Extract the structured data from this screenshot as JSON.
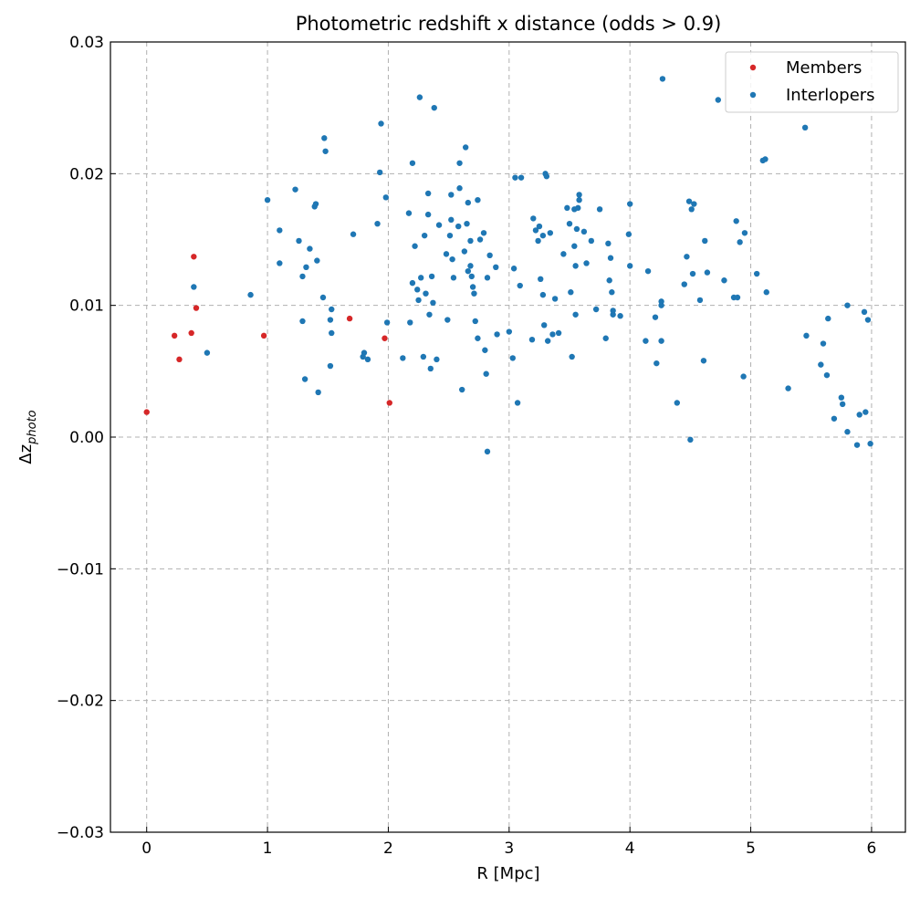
{
  "chart_data": {
    "type": "scatter",
    "title": "Photometric redshift x distance (odds > 0.9)",
    "xlabel": "R [Mpc]",
    "ylabel_main": "Δz",
    "ylabel_sub": "photo",
    "xlim": [
      -0.3,
      6.28
    ],
    "ylim": [
      -0.03,
      0.03
    ],
    "xticks": [
      0,
      1,
      2,
      3,
      4,
      5,
      6
    ],
    "xtick_labels": [
      "0",
      "1",
      "2",
      "3",
      "4",
      "5",
      "6"
    ],
    "yticks": [
      -0.03,
      -0.02,
      -0.01,
      0.0,
      0.01,
      0.02,
      0.03
    ],
    "ytick_labels": [
      "−0.03",
      "−0.02",
      "−0.01",
      "0.00",
      "0.01",
      "0.02",
      "0.03"
    ],
    "grid": true,
    "legend_position": "top-right",
    "series": [
      {
        "name": "Members",
        "color": "#d62728",
        "points": [
          [
            0.0,
            0.0019
          ],
          [
            0.23,
            0.0077
          ],
          [
            0.27,
            0.0059
          ],
          [
            0.37,
            0.0079
          ],
          [
            0.39,
            0.0137
          ],
          [
            0.41,
            0.0098
          ],
          [
            0.97,
            0.0077
          ],
          [
            1.68,
            0.009
          ],
          [
            1.97,
            0.0075
          ],
          [
            2.01,
            0.0026
          ]
        ]
      },
      {
        "name": "Interlopers",
        "color": "#1f77b4",
        "points": [
          [
            0.39,
            0.0114
          ],
          [
            0.5,
            0.0064
          ],
          [
            0.86,
            0.0108
          ],
          [
            1.0,
            0.018
          ],
          [
            1.1,
            0.0157
          ],
          [
            1.1,
            0.0132
          ],
          [
            1.23,
            0.0188
          ],
          [
            1.26,
            0.0149
          ],
          [
            1.29,
            0.0122
          ],
          [
            1.29,
            0.0088
          ],
          [
            1.31,
            0.0044
          ],
          [
            1.32,
            0.0129
          ],
          [
            1.35,
            0.0143
          ],
          [
            1.39,
            0.0175
          ],
          [
            1.4,
            0.0177
          ],
          [
            1.41,
            0.0134
          ],
          [
            1.42,
            0.0034
          ],
          [
            1.46,
            0.0106
          ],
          [
            1.47,
            0.0227
          ],
          [
            1.48,
            0.0217
          ],
          [
            1.52,
            0.0054
          ],
          [
            1.52,
            0.0089
          ],
          [
            1.53,
            0.0079
          ],
          [
            1.53,
            0.0097
          ],
          [
            1.71,
            0.0154
          ],
          [
            1.79,
            0.0061
          ],
          [
            1.8,
            0.0064
          ],
          [
            1.83,
            0.0059
          ],
          [
            1.91,
            0.0162
          ],
          [
            1.93,
            0.0201
          ],
          [
            1.94,
            0.0238
          ],
          [
            1.98,
            0.0182
          ],
          [
            1.99,
            0.0087
          ],
          [
            2.12,
            0.006
          ],
          [
            2.17,
            0.017
          ],
          [
            2.18,
            0.0087
          ],
          [
            2.2,
            0.0208
          ],
          [
            2.2,
            0.0117
          ],
          [
            2.22,
            0.0145
          ],
          [
            2.24,
            0.0112
          ],
          [
            2.25,
            0.0104
          ],
          [
            2.26,
            0.0258
          ],
          [
            2.27,
            0.0121
          ],
          [
            2.29,
            0.0061
          ],
          [
            2.3,
            0.0153
          ],
          [
            2.31,
            0.0109
          ],
          [
            2.33,
            0.0185
          ],
          [
            2.33,
            0.0169
          ],
          [
            2.34,
            0.0093
          ],
          [
            2.35,
            0.0052
          ],
          [
            2.36,
            0.0122
          ],
          [
            2.37,
            0.0102
          ],
          [
            2.38,
            0.025
          ],
          [
            2.4,
            0.0059
          ],
          [
            2.42,
            0.0161
          ],
          [
            2.48,
            0.0139
          ],
          [
            2.49,
            0.0089
          ],
          [
            2.51,
            0.0153
          ],
          [
            2.52,
            0.0184
          ],
          [
            2.52,
            0.0165
          ],
          [
            2.53,
            0.0135
          ],
          [
            2.54,
            0.0121
          ],
          [
            2.58,
            0.016
          ],
          [
            2.59,
            0.0189
          ],
          [
            2.59,
            0.0208
          ],
          [
            2.61,
            0.0036
          ],
          [
            2.63,
            0.0141
          ],
          [
            2.64,
            0.022
          ],
          [
            2.65,
            0.0162
          ],
          [
            2.66,
            0.0178
          ],
          [
            2.66,
            0.0126
          ],
          [
            2.68,
            0.0149
          ],
          [
            2.68,
            0.013
          ],
          [
            2.69,
            0.0122
          ],
          [
            2.7,
            0.0114
          ],
          [
            2.71,
            0.0109
          ],
          [
            2.72,
            0.0088
          ],
          [
            2.74,
            0.0075
          ],
          [
            2.74,
            0.018
          ],
          [
            2.76,
            0.015
          ],
          [
            2.79,
            0.0155
          ],
          [
            2.8,
            0.0066
          ],
          [
            2.81,
            0.0048
          ],
          [
            2.82,
            0.0121
          ],
          [
            2.82,
            -0.0011
          ],
          [
            2.84,
            0.0138
          ],
          [
            2.89,
            0.0129
          ],
          [
            2.9,
            0.0078
          ],
          [
            3.0,
            0.008
          ],
          [
            3.03,
            0.006
          ],
          [
            3.04,
            0.0128
          ],
          [
            3.05,
            0.0197
          ],
          [
            3.07,
            0.0026
          ],
          [
            3.09,
            0.0115
          ],
          [
            3.1,
            0.0197
          ],
          [
            3.19,
            0.0074
          ],
          [
            3.2,
            0.0166
          ],
          [
            3.22,
            0.0157
          ],
          [
            3.24,
            0.0149
          ],
          [
            3.25,
            0.016
          ],
          [
            3.26,
            0.012
          ],
          [
            3.28,
            0.0153
          ],
          [
            3.28,
            0.0108
          ],
          [
            3.29,
            0.0085
          ],
          [
            3.3,
            0.02
          ],
          [
            3.31,
            0.0198
          ],
          [
            3.32,
            0.0073
          ],
          [
            3.34,
            0.0155
          ],
          [
            3.36,
            0.0078
          ],
          [
            3.38,
            0.0105
          ],
          [
            3.41,
            0.0079
          ],
          [
            3.45,
            0.0139
          ],
          [
            3.48,
            0.0174
          ],
          [
            3.5,
            0.0162
          ],
          [
            3.51,
            0.011
          ],
          [
            3.52,
            0.0061
          ],
          [
            3.54,
            0.0173
          ],
          [
            3.54,
            0.0145
          ],
          [
            3.55,
            0.013
          ],
          [
            3.55,
            0.0093
          ],
          [
            3.56,
            0.0158
          ],
          [
            3.57,
            0.0174
          ],
          [
            3.58,
            0.0184
          ],
          [
            3.58,
            0.018
          ],
          [
            3.62,
            0.0156
          ],
          [
            3.64,
            0.0132
          ],
          [
            3.68,
            0.0149
          ],
          [
            3.72,
            0.0097
          ],
          [
            3.75,
            0.0173
          ],
          [
            3.8,
            0.0075
          ],
          [
            3.82,
            0.0147
          ],
          [
            3.83,
            0.0119
          ],
          [
            3.84,
            0.0136
          ],
          [
            3.85,
            0.011
          ],
          [
            3.86,
            0.0093
          ],
          [
            3.86,
            0.0096
          ],
          [
            3.92,
            0.0092
          ],
          [
            3.99,
            0.0154
          ],
          [
            4.0,
            0.013
          ],
          [
            4.0,
            0.0177
          ],
          [
            4.13,
            0.0073
          ],
          [
            4.15,
            0.0126
          ],
          [
            4.21,
            0.0091
          ],
          [
            4.22,
            0.0056
          ],
          [
            4.26,
            0.01
          ],
          [
            4.26,
            0.0103
          ],
          [
            4.26,
            0.0073
          ],
          [
            4.27,
            0.0272
          ],
          [
            4.39,
            0.0026
          ],
          [
            4.45,
            0.0116
          ],
          [
            4.47,
            0.0137
          ],
          [
            4.49,
            0.0179
          ],
          [
            4.5,
            -0.0002
          ],
          [
            4.51,
            0.0173
          ],
          [
            4.52,
            0.0124
          ],
          [
            4.53,
            0.0177
          ],
          [
            4.58,
            0.0104
          ],
          [
            4.61,
            0.0058
          ],
          [
            4.62,
            0.0149
          ],
          [
            4.64,
            0.0125
          ],
          [
            4.73,
            0.0256
          ],
          [
            4.78,
            0.0119
          ],
          [
            4.86,
            0.0106
          ],
          [
            4.88,
            0.0164
          ],
          [
            4.89,
            0.0106
          ],
          [
            4.91,
            0.0148
          ],
          [
            4.94,
            0.0046
          ],
          [
            4.95,
            0.0155
          ],
          [
            5.05,
            0.0124
          ],
          [
            5.1,
            0.021
          ],
          [
            5.12,
            0.0211
          ],
          [
            5.13,
            0.011
          ],
          [
            5.31,
            0.0037
          ],
          [
            5.45,
            0.0235
          ],
          [
            5.46,
            0.0077
          ],
          [
            5.58,
            0.0055
          ],
          [
            5.6,
            0.0071
          ],
          [
            5.63,
            0.0047
          ],
          [
            5.64,
            0.009
          ],
          [
            5.69,
            0.0014
          ],
          [
            5.75,
            0.003
          ],
          [
            5.76,
            0.0025
          ],
          [
            5.8,
            0.01
          ],
          [
            5.8,
            0.0004
          ],
          [
            5.88,
            -0.0006
          ],
          [
            5.9,
            0.0017
          ],
          [
            5.94,
            0.0095
          ],
          [
            5.95,
            0.0019
          ],
          [
            5.97,
            0.0089
          ],
          [
            5.99,
            -0.0005
          ]
        ]
      }
    ]
  }
}
